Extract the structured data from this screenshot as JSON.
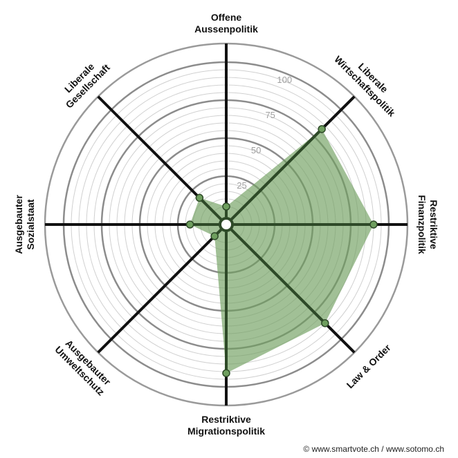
{
  "chart_data": {
    "type": "radar",
    "categories": [
      "Offene\nAussenpolitik",
      "Liberale\nWirtschaftspolitik",
      "Restriktive\nFinanzpolitik",
      "Law & Order",
      "Restriktive\nMigrationspolitik",
      "Ausgebauter\nUmweltschutz",
      "Ausgebauter\nSozialstaat",
      "Liberale\nGesellschaft"
    ],
    "values": [
      5,
      82,
      90,
      85,
      91,
      4,
      17,
      18
    ],
    "color": "#6e9e5e",
    "rlim": [
      0,
      100
    ],
    "rticks": [
      25,
      50,
      75,
      100
    ],
    "grid": true,
    "credit": "© www.smartvote.ch / www.sotomo.ch"
  }
}
